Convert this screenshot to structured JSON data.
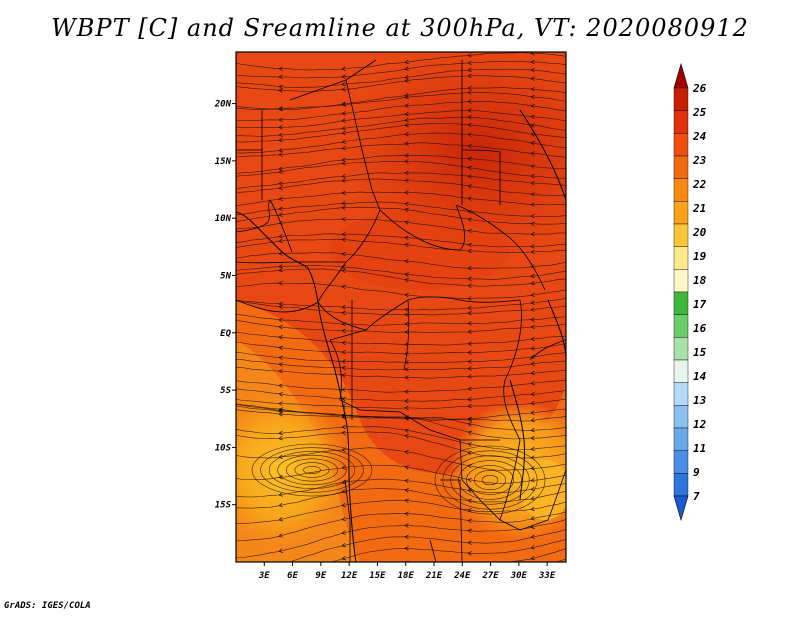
{
  "title": "WBPT [C] and Sreamline at 300hPa, VT: 2020080912",
  "credit": "GrADS: IGES/COLA",
  "map": {
    "lat_ticks": [
      "20N",
      "15N",
      "10N",
      "5N",
      "EQ",
      "5S",
      "10S",
      "15S"
    ],
    "lon_ticks": [
      "3E",
      "6E",
      "9E",
      "12E",
      "15E",
      "18E",
      "21E",
      "24E",
      "27E",
      "30E",
      "33E"
    ],
    "lat_values": [
      20,
      15,
      10,
      5,
      0,
      -5,
      -10,
      -15
    ],
    "lon_values": [
      3,
      6,
      9,
      12,
      15,
      18,
      21,
      24,
      27,
      30,
      33
    ],
    "lon_range": [
      0,
      35
    ],
    "lat_range": [
      -20,
      24.5
    ]
  },
  "colorbar": {
    "levels": [
      "26",
      "25",
      "24",
      "23",
      "22",
      "21",
      "20",
      "19",
      "18",
      "17",
      "16",
      "15",
      "14",
      "13",
      "12",
      "11",
      "9",
      "7"
    ],
    "colors": [
      "#a50000",
      "#c81e00",
      "#e0320a",
      "#ef4f0c",
      "#f36b0e",
      "#f88a12",
      "#fba318",
      "#fbc53a",
      "#fde98c",
      "#fff7c4",
      "#3cb83c",
      "#6acc6a",
      "#a8e2a8",
      "#e6f6ec",
      "#b4daf8",
      "#8ac0f0",
      "#6aa8ec",
      "#4a8ee6",
      "#2e76dc",
      "#1a5ad0"
    ]
  }
}
